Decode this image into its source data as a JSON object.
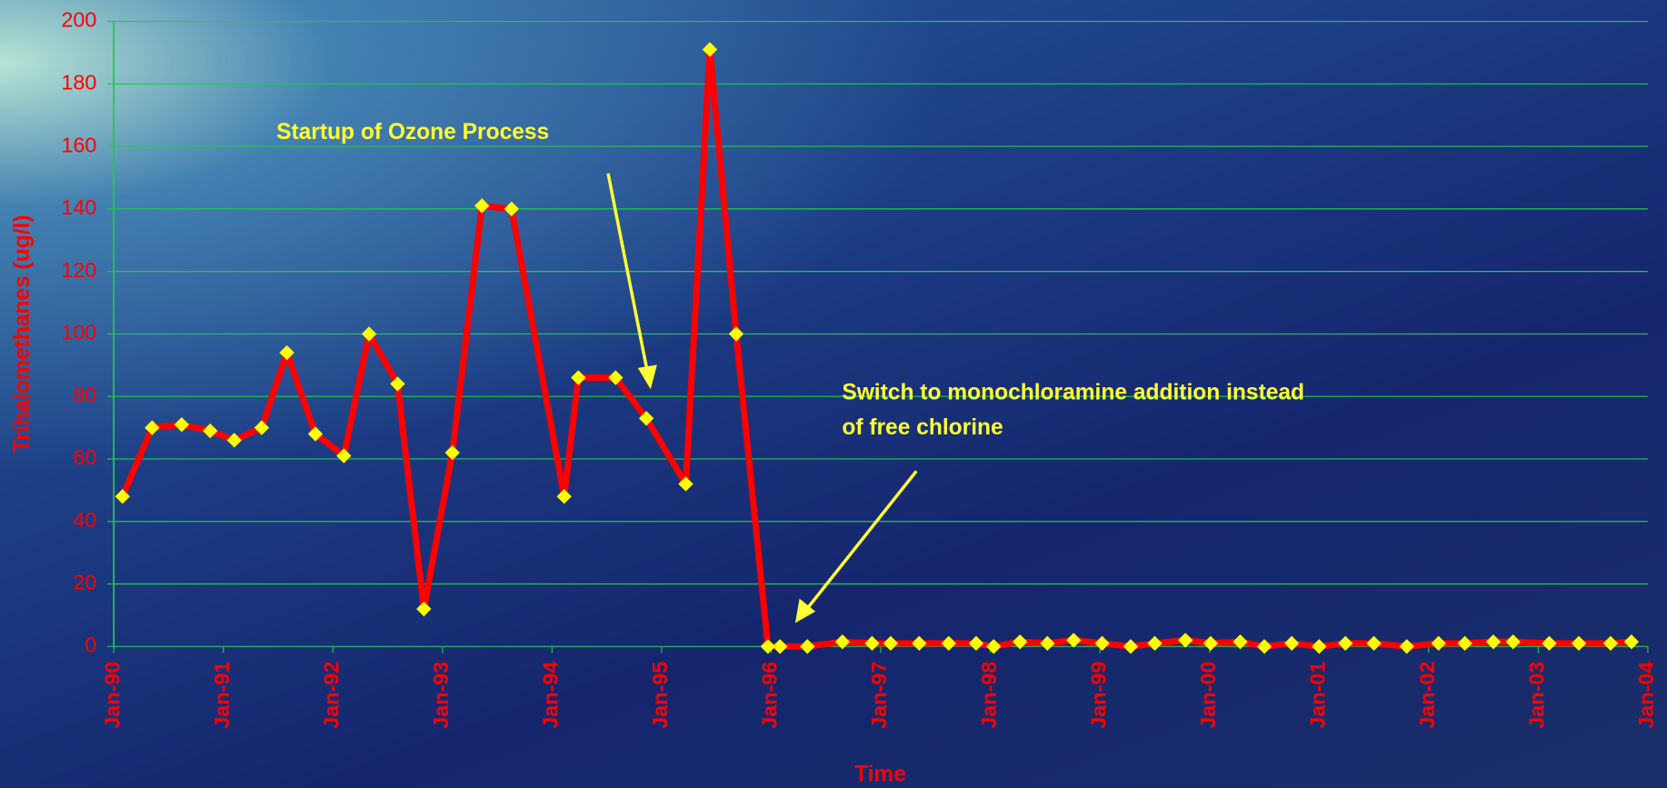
{
  "chart_data": {
    "type": "line",
    "y_label": "Trihalomethanes (ug/l)",
    "x_label": "Time",
    "annotations": [
      "Startup of Ozone Process",
      "Switch to monochloramine addition instead",
      "of free chlorine"
    ],
    "x": [
      1990.08,
      1990.35,
      1990.62,
      1990.88,
      1991.1,
      1991.35,
      1991.58,
      1991.84,
      1992.1,
      1992.33,
      1992.59,
      1992.83,
      1993.09,
      1993.36,
      1993.63,
      1994.11,
      1994.24,
      1994.58,
      1994.86,
      1995.22,
      1995.44,
      1995.68,
      1995.97,
      1996.08,
      1996.33,
      1996.65,
      1996.92,
      1997.09,
      1997.35,
      1997.62,
      1997.87,
      1998.03,
      1998.27,
      1998.52,
      1998.76,
      1999.02,
      1999.28,
      1999.5,
      1999.78,
      2000.01,
      2000.28,
      2000.5,
      2000.75,
      2001.0,
      2001.24,
      2001.5,
      2001.8,
      2002.09,
      2002.33,
      2002.59,
      2002.77,
      2003.1,
      2003.37,
      2003.66,
      2003.85
    ],
    "series": [
      {
        "color": "#ff0000",
        "marker_color": "#ffff00",
        "values": [
          48,
          70,
          71,
          69,
          66,
          70,
          94,
          68,
          61,
          100,
          84,
          12,
          62,
          141,
          140,
          48,
          86,
          86,
          73,
          52,
          191,
          100,
          0,
          0,
          0,
          1.5,
          1,
          1,
          1,
          1,
          1,
          0,
          1.5,
          1,
          2,
          1,
          0,
          1,
          2,
          1,
          1.5,
          0,
          1,
          0,
          1,
          1,
          0,
          1,
          1,
          1.5,
          1.5,
          1,
          1,
          1,
          1.5
        ]
      }
    ],
    "xlim": [
      1990,
      2004
    ],
    "xticks": [
      {
        "value": 1990,
        "label": "Jan-90"
      },
      {
        "value": 1991,
        "label": "Jan-91"
      },
      {
        "value": 1992,
        "label": "Jan-92"
      },
      {
        "value": 1993,
        "label": "Jan-93"
      },
      {
        "value": 1994,
        "label": "Jan-94"
      },
      {
        "value": 1995,
        "label": "Jan-95"
      },
      {
        "value": 1996,
        "label": "Jan-96"
      },
      {
        "value": 1997,
        "label": "Jan-97"
      },
      {
        "value": 1998,
        "label": "Jan-98"
      },
      {
        "value": 1999,
        "label": "Jan-99"
      },
      {
        "value": 2000,
        "label": "Jan-00"
      },
      {
        "value": 2001,
        "label": "Jan-01"
      },
      {
        "value": 2002,
        "label": "Jan-02"
      },
      {
        "value": 2003,
        "label": "Jan-03"
      },
      {
        "value": 2004,
        "label": "Jan-04"
      }
    ],
    "ylim": [
      0,
      200
    ],
    "yticks": [
      0,
      20,
      40,
      60,
      80,
      100,
      120,
      140,
      160,
      180,
      200
    ],
    "grid": true,
    "grid_color": "#22c94a",
    "tick_label_color": "#ff0000",
    "annotation_color": "#ffff33"
  }
}
